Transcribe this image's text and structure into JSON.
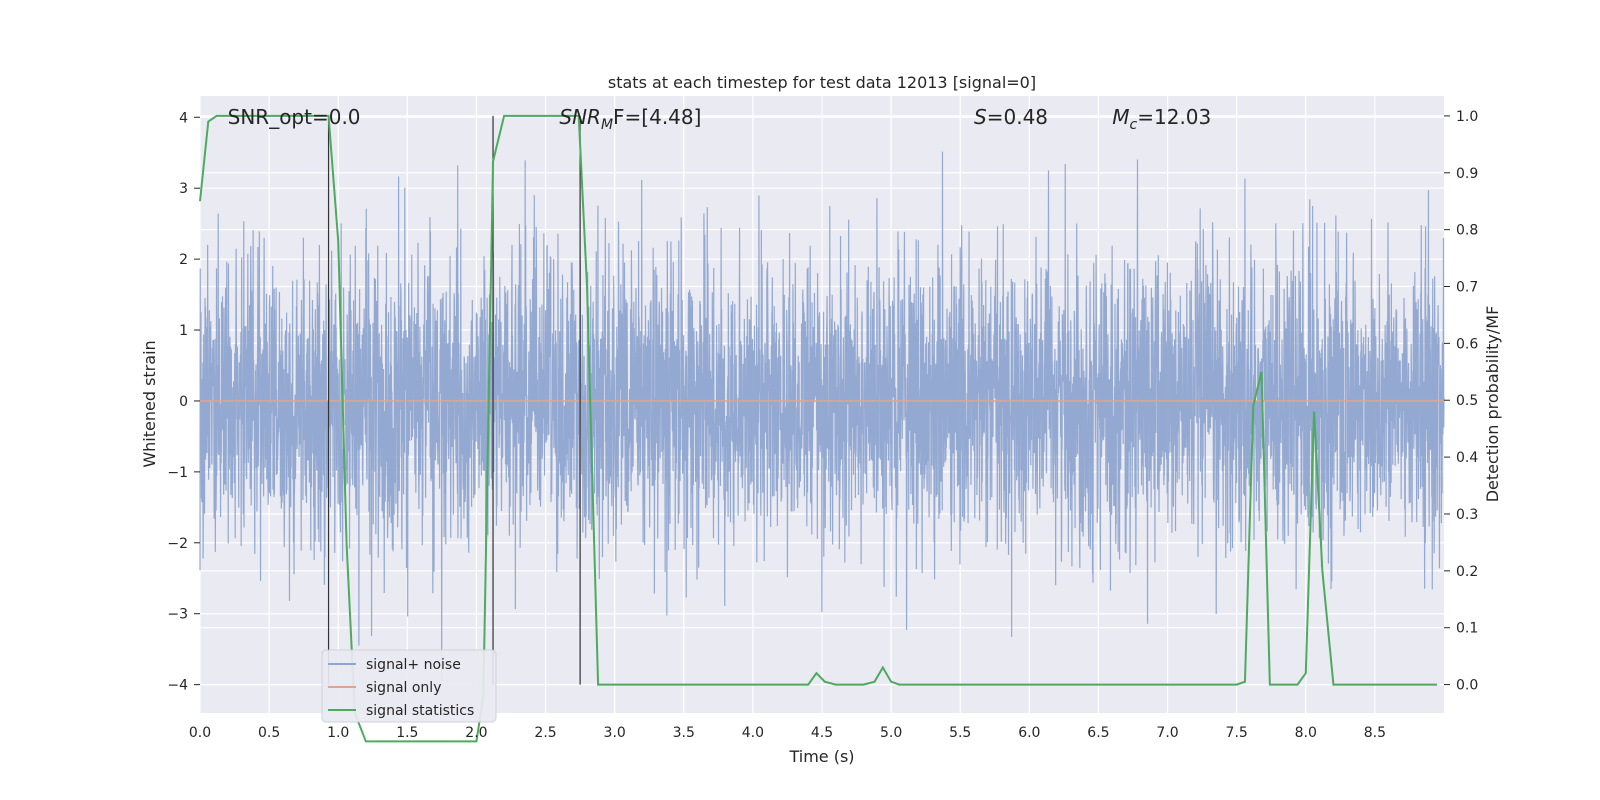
{
  "chart_data": {
    "type": "line",
    "title": "stats at each timestep for test data 12013 [signal=0]",
    "xlabel": "Time (s)",
    "ylabel_left": "Whitened strain",
    "ylabel_right": "Detection probability/MF",
    "xlim": [
      0,
      9.0
    ],
    "ylim_left": [
      -4.4,
      4.3
    ],
    "ylim_right": [
      -0.05,
      1.035
    ],
    "xticks": [
      0.0,
      0.5,
      1.0,
      1.5,
      2.0,
      2.5,
      3.0,
      3.5,
      4.0,
      4.5,
      5.0,
      5.5,
      6.0,
      6.5,
      7.0,
      7.5,
      8.0,
      8.5
    ],
    "xtick_labels": [
      "0.0",
      "0.5",
      "1.0",
      "1.5",
      "2.0",
      "2.5",
      "3.0",
      "3.5",
      "4.0",
      "4.5",
      "5.0",
      "5.5",
      "6.0",
      "6.5",
      "7.0",
      "7.5",
      "8.0",
      "8.5"
    ],
    "yticks_left": [
      -4,
      -3,
      -2,
      -1,
      0,
      1,
      2,
      3,
      4
    ],
    "ytick_labels_left": [
      "−4",
      "−3",
      "−2",
      "−1",
      "0",
      "1",
      "2",
      "3",
      "4"
    ],
    "yticks_right": [
      0.0,
      0.1,
      0.2,
      0.3,
      0.4,
      0.5,
      0.6,
      0.7,
      0.8,
      0.9,
      1.0
    ],
    "ytick_labels_right": [
      "0.0",
      "0.1",
      "0.2",
      "0.3",
      "0.4",
      "0.5",
      "0.6",
      "0.7",
      "0.8",
      "0.9",
      "1.0"
    ],
    "grid": true,
    "legend_position": "lower-left",
    "annotations": [
      {
        "id": "snr-opt",
        "text": "SNR_opt=0.0",
        "x": 0.2
      },
      {
        "id": "snr-mf",
        "text": "SNR",
        "sub": "M",
        "tail": "F=[4.48]",
        "italic": true,
        "x": 2.6
      },
      {
        "id": "s-stat",
        "text": "S",
        "tail": "=0.48",
        "italic": true,
        "x": 5.6
      },
      {
        "id": "mc",
        "text": "M",
        "sub": "c",
        "tail": "=12.03",
        "italic": true,
        "x": 6.6
      }
    ],
    "vertical_lines": [
      0.93,
      2.12,
      2.75
    ],
    "series": [
      {
        "name": "signal+ noise",
        "axis": "left",
        "color": "#8fa5cf",
        "description_values": "dense whitened noise, approx. gaussian, peaks between -4 and 4",
        "sigma": 1.0,
        "sample_rate": 2048
      },
      {
        "name": "signal only",
        "axis": "left",
        "color": "#e0a48a",
        "constant_value": 0.0
      },
      {
        "name": "signal statistics",
        "axis": "right",
        "color": "#4daa5e",
        "x": [
          0.0,
          0.06,
          0.12,
          0.18,
          0.3,
          0.5,
          0.7,
          0.9,
          0.93,
          1.0,
          1.06,
          1.12,
          1.2,
          1.5,
          1.8,
          2.0,
          2.05,
          2.12,
          2.2,
          2.3,
          2.4,
          2.6,
          2.74,
          2.8,
          2.88,
          3.0,
          3.5,
          4.0,
          4.4,
          4.46,
          4.52,
          4.6,
          4.8,
          4.88,
          4.94,
          5.0,
          5.06,
          5.5,
          6.0,
          6.5,
          7.0,
          7.5,
          7.56,
          7.62,
          7.68,
          7.74,
          7.8,
          7.94,
          8.0,
          8.06,
          8.12,
          8.2,
          8.3,
          8.5,
          8.8,
          8.95
        ],
        "values": [
          0.85,
          0.99,
          1.0,
          1.0,
          1.0,
          1.0,
          1.0,
          1.0,
          1.0,
          0.78,
          0.25,
          -0.05,
          -0.1,
          -0.1,
          -0.1,
          -0.1,
          -0.02,
          0.92,
          1.0,
          1.0,
          1.0,
          1.0,
          1.0,
          0.7,
          0.0,
          0.0,
          0.0,
          0.0,
          0.0,
          0.02,
          0.005,
          0.0,
          0.0,
          0.005,
          0.03,
          0.005,
          0.0,
          0.0,
          0.0,
          0.0,
          0.0,
          0.0,
          0.005,
          0.49,
          0.55,
          0.0,
          0.0,
          0.0,
          0.02,
          0.48,
          0.2,
          0.0,
          0.0,
          0.0,
          0.0,
          0.0
        ]
      }
    ]
  }
}
